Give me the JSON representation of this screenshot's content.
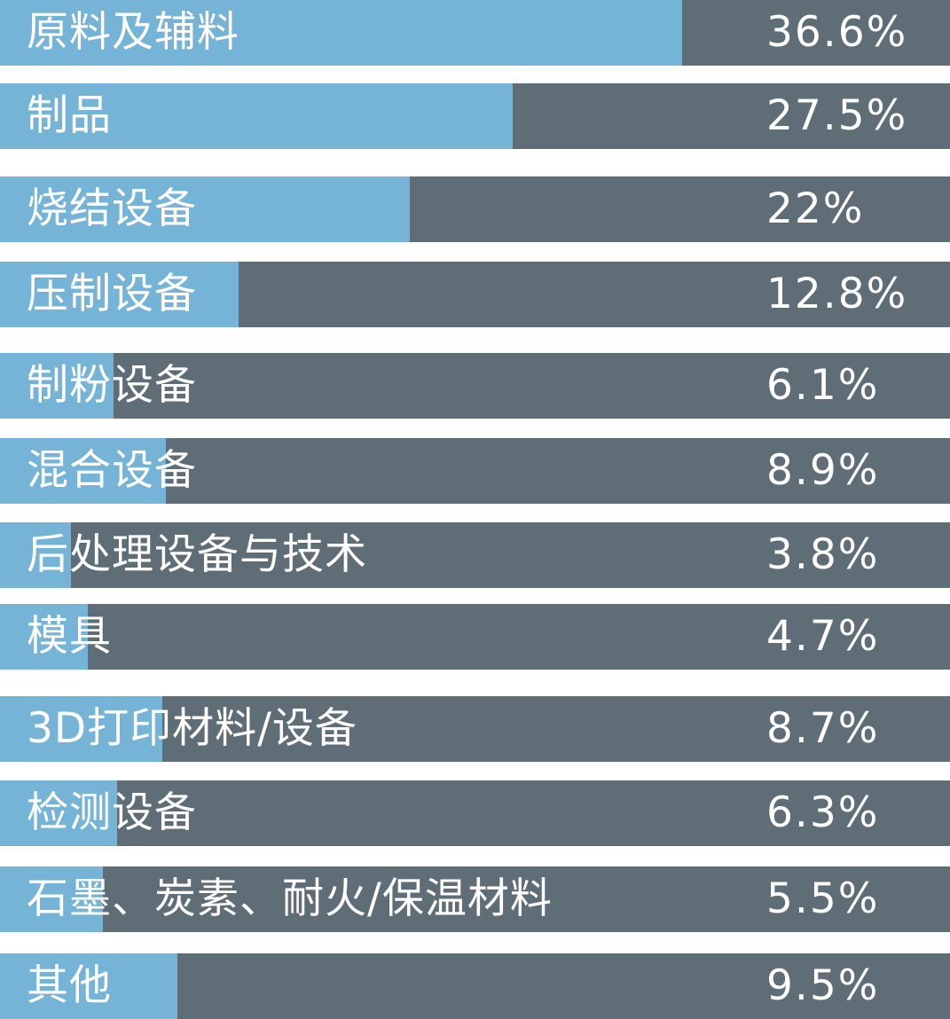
{
  "chart_data": {
    "type": "bar",
    "orientation": "horizontal",
    "categories": [
      "原料及辅料",
      "制品",
      "烧结设备",
      "压制设备",
      "制粉设备",
      "混合设备",
      "后处理设备与技术",
      "模具",
      "3D打印材料/设备",
      "检测设备",
      "石墨、炭素、耐火/保温材料",
      "其他"
    ],
    "values": [
      36.6,
      27.5,
      22,
      12.8,
      6.1,
      8.9,
      3.8,
      4.7,
      8.7,
      6.3,
      5.5,
      9.5
    ],
    "value_labels": [
      "36.6%",
      "27.5%",
      "22%",
      "12.8%",
      "6.1%",
      "8.9%",
      "3.8%",
      "4.7%",
      "8.7%",
      "6.3%",
      "5.5%",
      "9.5%"
    ],
    "xlim": [
      0,
      51
    ],
    "colors": {
      "fill": "#76b4d7",
      "track": "#5f6e76",
      "text": "#ffffff",
      "background": "#ffffff"
    }
  }
}
